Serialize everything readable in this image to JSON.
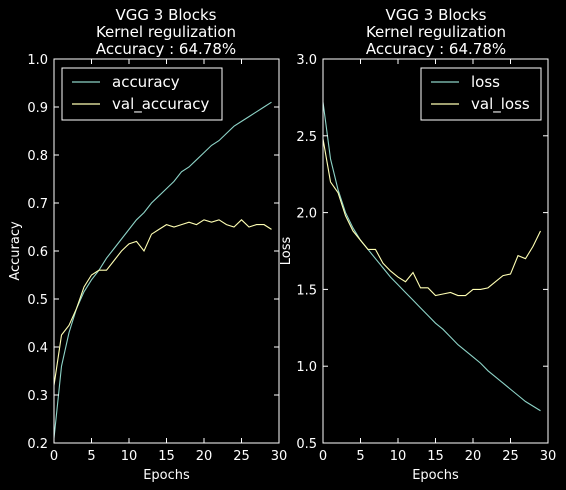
{
  "chart_data": [
    {
      "type": "line",
      "title": [
        "VGG 3 Blocks",
        "Kernel regulization",
        "Accuracy : 64.78%"
      ],
      "xlabel": "Epochs",
      "ylabel": "Accuracy",
      "xlim": [
        0,
        30
      ],
      "ylim": [
        0.2,
        1.0
      ],
      "xticks": [
        0,
        5,
        10,
        15,
        20,
        25,
        30
      ],
      "yticks": [
        0.2,
        0.3,
        0.4,
        0.5,
        0.6,
        0.7,
        0.8,
        0.9,
        1.0
      ],
      "xtick_labels": [
        "0",
        "5",
        "10",
        "15",
        "20",
        "25",
        "30"
      ],
      "ytick_labels": [
        "0.2",
        "0.3",
        "0.4",
        "0.5",
        "0.6",
        "0.7",
        "0.8",
        "0.9",
        "1.0"
      ],
      "grid": false,
      "legend_position": "upper-left",
      "x": [
        0,
        1,
        2,
        3,
        4,
        5,
        6,
        7,
        8,
        9,
        10,
        11,
        12,
        13,
        14,
        15,
        16,
        17,
        18,
        19,
        20,
        21,
        22,
        23,
        24,
        25,
        26,
        27,
        28,
        29
      ],
      "series": [
        {
          "name": "accuracy",
          "color": "#8dd3c7",
          "values": [
            0.21,
            0.36,
            0.43,
            0.48,
            0.515,
            0.54,
            0.56,
            0.585,
            0.605,
            0.625,
            0.645,
            0.665,
            0.68,
            0.7,
            0.715,
            0.73,
            0.745,
            0.765,
            0.775,
            0.79,
            0.805,
            0.82,
            0.83,
            0.845,
            0.86,
            0.87,
            0.88,
            0.89,
            0.9,
            0.91
          ]
        },
        {
          "name": "val_accuracy",
          "color": "#ffffb3",
          "values": [
            0.32,
            0.425,
            0.445,
            0.48,
            0.525,
            0.55,
            0.56,
            0.56,
            0.58,
            0.6,
            0.615,
            0.62,
            0.6,
            0.635,
            0.645,
            0.655,
            0.65,
            0.655,
            0.66,
            0.655,
            0.665,
            0.66,
            0.665,
            0.655,
            0.65,
            0.665,
            0.65,
            0.655,
            0.655,
            0.645
          ]
        }
      ]
    },
    {
      "type": "line",
      "title": [
        "VGG 3 Blocks",
        "Kernel regulization",
        "Accuracy : 64.78%"
      ],
      "xlabel": "Epochs",
      "ylabel": "Loss",
      "xlim": [
        0,
        30
      ],
      "ylim": [
        0.5,
        3.0
      ],
      "xticks": [
        0,
        5,
        10,
        15,
        20,
        25,
        30
      ],
      "yticks": [
        0.5,
        1.0,
        1.5,
        2.0,
        2.5,
        3.0
      ],
      "xtick_labels": [
        "0",
        "5",
        "10",
        "15",
        "20",
        "25",
        "30"
      ],
      "ytick_labels": [
        "0.5",
        "1.0",
        "1.5",
        "2.0",
        "2.5",
        "3.0"
      ],
      "grid": false,
      "legend_position": "upper-right",
      "x": [
        0,
        1,
        2,
        3,
        4,
        5,
        6,
        7,
        8,
        9,
        10,
        11,
        12,
        13,
        14,
        15,
        16,
        17,
        18,
        19,
        20,
        21,
        22,
        23,
        24,
        25,
        26,
        27,
        28,
        29
      ],
      "series": [
        {
          "name": "loss",
          "color": "#8dd3c7",
          "values": [
            2.72,
            2.35,
            2.15,
            2.0,
            1.9,
            1.82,
            1.76,
            1.7,
            1.64,
            1.58,
            1.53,
            1.48,
            1.43,
            1.38,
            1.33,
            1.28,
            1.24,
            1.19,
            1.14,
            1.1,
            1.06,
            1.02,
            0.97,
            0.93,
            0.89,
            0.85,
            0.81,
            0.77,
            0.74,
            0.71
          ]
        },
        {
          "name": "val_loss",
          "color": "#ffffb3",
          "values": [
            2.48,
            2.2,
            2.13,
            1.98,
            1.88,
            1.82,
            1.76,
            1.76,
            1.67,
            1.62,
            1.58,
            1.55,
            1.61,
            1.51,
            1.51,
            1.46,
            1.47,
            1.48,
            1.46,
            1.46,
            1.5,
            1.5,
            1.51,
            1.55,
            1.59,
            1.6,
            1.72,
            1.7,
            1.78,
            1.88
          ]
        }
      ]
    }
  ]
}
